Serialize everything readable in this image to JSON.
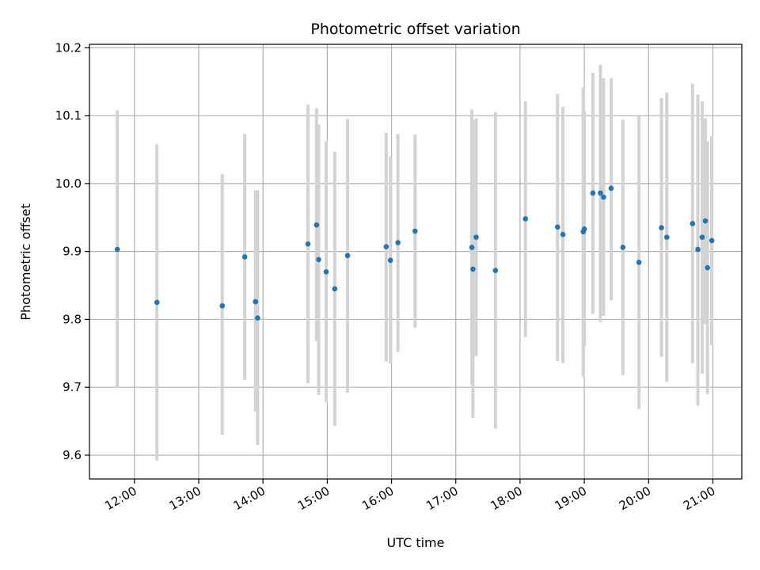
{
  "chart_data": {
    "type": "scatter",
    "title": "Photometric offset variation",
    "xlabel": "UTC time",
    "ylabel": "Photometric offset",
    "x_axis_type": "time",
    "xlim": [
      "11:18",
      "21:27"
    ],
    "ylim": [
      9.565,
      10.205
    ],
    "x_ticks": [
      "12:00",
      "13:00",
      "14:00",
      "15:00",
      "16:00",
      "17:00",
      "18:00",
      "19:00",
      "20:00",
      "21:00"
    ],
    "y_ticks": [
      "9.6",
      "9.7",
      "9.8",
      "9.9",
      "10.0",
      "10.1",
      "10.2"
    ],
    "grid": true,
    "legend": "none",
    "colors": {
      "point": "#1f77b4",
      "errorbar": "#d3d3d3"
    },
    "points": [
      {
        "time": "11:44",
        "y": 9.903,
        "low": 9.7,
        "high": 10.108
      },
      {
        "time": "12:21",
        "y": 9.825,
        "low": 9.592,
        "high": 10.058
      },
      {
        "time": "13:22",
        "y": 9.82,
        "low": 9.63,
        "high": 10.014
      },
      {
        "time": "13:43",
        "y": 9.892,
        "low": 9.711,
        "high": 10.073
      },
      {
        "time": "13:53",
        "y": 9.826,
        "low": 9.665,
        "high": 9.99
      },
      {
        "time": "13:55",
        "y": 9.802,
        "low": 9.615,
        "high": 9.99
      },
      {
        "time": "14:42",
        "y": 9.911,
        "low": 9.706,
        "high": 10.116
      },
      {
        "time": "14:50",
        "y": 9.939,
        "low": 9.768,
        "high": 10.111
      },
      {
        "time": "14:52",
        "y": 9.888,
        "low": 9.689,
        "high": 10.087
      },
      {
        "time": "14:59",
        "y": 9.87,
        "low": 9.678,
        "high": 10.062
      },
      {
        "time": "15:07",
        "y": 9.845,
        "low": 9.643,
        "high": 10.047
      },
      {
        "time": "15:19",
        "y": 9.894,
        "low": 9.692,
        "high": 10.095
      },
      {
        "time": "15:55",
        "y": 9.907,
        "low": 9.738,
        "high": 10.075
      },
      {
        "time": "15:59",
        "y": 9.887,
        "low": 9.735,
        "high": 10.04
      },
      {
        "time": "16:06",
        "y": 9.913,
        "low": 9.752,
        "high": 10.073
      },
      {
        "time": "16:22",
        "y": 9.93,
        "low": 9.788,
        "high": 10.072
      },
      {
        "time": "17:15",
        "y": 9.906,
        "low": 9.704,
        "high": 10.109
      },
      {
        "time": "17:16",
        "y": 9.874,
        "low": 9.655,
        "high": 10.093
      },
      {
        "time": "17:19",
        "y": 9.921,
        "low": 9.746,
        "high": 10.096
      },
      {
        "time": "17:37",
        "y": 9.872,
        "low": 9.639,
        "high": 10.105
      },
      {
        "time": "18:05",
        "y": 9.948,
        "low": 9.774,
        "high": 10.121
      },
      {
        "time": "18:35",
        "y": 9.936,
        "low": 9.739,
        "high": 10.132
      },
      {
        "time": "18:40",
        "y": 9.925,
        "low": 9.736,
        "high": 10.113
      },
      {
        "time": "18:59",
        "y": 9.929,
        "low": 9.716,
        "high": 10.141
      },
      {
        "time": "19:00",
        "y": 9.933,
        "low": 9.76,
        "high": 10.106
      },
      {
        "time": "19:08",
        "y": 9.986,
        "low": 9.808,
        "high": 10.163
      },
      {
        "time": "19:15",
        "y": 9.986,
        "low": 9.796,
        "high": 10.175
      },
      {
        "time": "19:18",
        "y": 9.98,
        "low": 9.805,
        "high": 10.155
      },
      {
        "time": "19:25",
        "y": 9.993,
        "low": 9.828,
        "high": 10.155
      },
      {
        "time": "19:36",
        "y": 9.906,
        "low": 9.718,
        "high": 10.094
      },
      {
        "time": "19:51",
        "y": 9.884,
        "low": 9.668,
        "high": 10.1
      },
      {
        "time": "20:12",
        "y": 9.935,
        "low": 9.745,
        "high": 10.126
      },
      {
        "time": "20:17",
        "y": 9.921,
        "low": 9.708,
        "high": 10.134
      },
      {
        "time": "20:41",
        "y": 9.941,
        "low": 9.735,
        "high": 10.147
      },
      {
        "time": "20:46",
        "y": 9.903,
        "low": 9.673,
        "high": 10.131
      },
      {
        "time": "20:50",
        "y": 9.921,
        "low": 9.72,
        "high": 10.121
      },
      {
        "time": "20:53",
        "y": 9.945,
        "low": 9.793,
        "high": 10.096
      },
      {
        "time": "20:55",
        "y": 9.876,
        "low": 9.69,
        "high": 10.062
      },
      {
        "time": "20:59",
        "y": 9.916,
        "low": 9.762,
        "high": 10.07
      }
    ]
  }
}
